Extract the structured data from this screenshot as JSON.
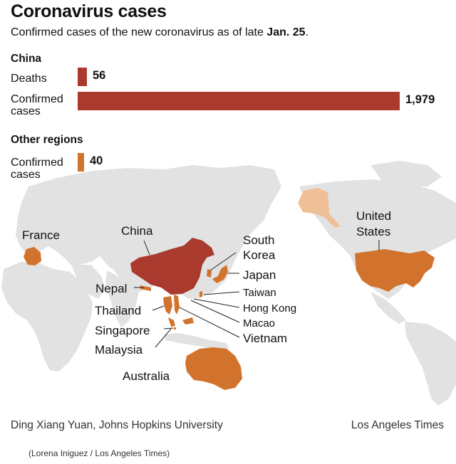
{
  "title": "Coronavirus cases",
  "subtitle": {
    "text": "Confirmed cases of the new coronavirus as of late ",
    "bold": "Jan. 25",
    "end": "."
  },
  "chart_data": {
    "type": "bar",
    "title": "Coronavirus cases",
    "groups": [
      {
        "name": "China",
        "bars": [
          {
            "label": "Deaths",
            "value": 56,
            "value_label": "56",
            "color": "#a93a2d"
          },
          {
            "label": "Confirmed cases",
            "value": 1979,
            "value_label": "1,979",
            "color": "#a93a2d"
          }
        ]
      },
      {
        "name": "Other regions",
        "bars": [
          {
            "label": "Confirmed cases",
            "value": 40,
            "value_label": "40",
            "color": "#d2732d"
          }
        ]
      }
    ],
    "xlim": [
      0,
      1979
    ]
  },
  "labels": {
    "deaths": "Deaths",
    "confirmed_line1": "Confirmed",
    "confirmed_line2": "cases"
  },
  "map": {
    "colors": {
      "land": "#e1e1e1",
      "china": "#a93a2d",
      "other": "#d2732d",
      "alaska": "#efbf98"
    },
    "regions": {
      "france": "France",
      "china": "China",
      "south_korea_1": "South",
      "south_korea_2": "Korea",
      "japan": "Japan",
      "nepal": "Nepal",
      "taiwan": "Taiwan",
      "thailand": "Thailand",
      "hong_kong": "Hong Kong",
      "macao": "Macao",
      "singapore": "Singapore",
      "vietnam": "Vietnam",
      "malaysia": "Malaysia",
      "australia": "Australia",
      "united_states_1": "United",
      "united_states_2": "States"
    }
  },
  "footer": {
    "source": "Ding Xiang Yuan, Johns Hopkins University",
    "publisher": "Los Angeles Times",
    "credit": "(Lorena Iniguez / Los Angeles Times)"
  }
}
